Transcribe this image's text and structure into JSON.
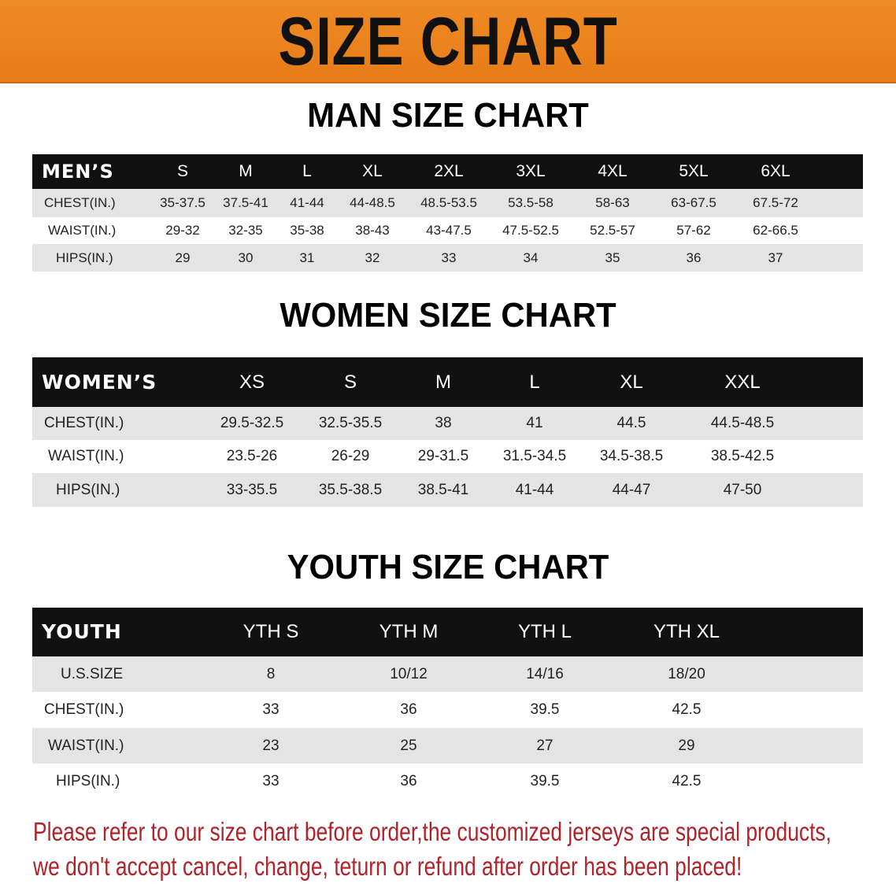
{
  "banner": {
    "title": "SIZE CHART",
    "color": "#e9801b"
  },
  "men": {
    "title": "MAN SIZE CHART",
    "header": "MEN’S",
    "sizes": [
      "S",
      "M",
      "L",
      "XL",
      "2XL",
      "3XL",
      "4XL",
      "5XL",
      "6XL"
    ],
    "rows": [
      {
        "label": "CHEST(IN.)",
        "values": [
          "35-37.5",
          "37.5-41",
          "41-44",
          "44-48.5",
          "48.5-53.5",
          "53.5-58",
          "58-63",
          "63-67.5",
          "67.5-72"
        ]
      },
      {
        "label": "WAIST(IN.)",
        "values": [
          "29-32",
          "32-35",
          "35-38",
          "38-43",
          "43-47.5",
          "47.5-52.5",
          "52.5-57",
          "57-62",
          "62-66.5"
        ]
      },
      {
        "label": "HIPS(IN.)",
        "values": [
          "29",
          "30",
          "31",
          "32",
          "33",
          "34",
          "35",
          "36",
          "37"
        ]
      }
    ]
  },
  "women": {
    "title": "WOMEN SIZE CHART",
    "header": "WOMEN’S",
    "sizes": [
      "XS",
      "S",
      "M",
      "L",
      "XL",
      "XXL"
    ],
    "rows": [
      {
        "label": "CHEST(IN.)",
        "values": [
          "29.5-32.5",
          "32.5-35.5",
          "38",
          "41",
          "44.5",
          "44.5-48.5"
        ]
      },
      {
        "label": "WAIST(IN.)",
        "values": [
          "23.5-26",
          "26-29",
          "29-31.5",
          "31.5-34.5",
          "34.5-38.5",
          "38.5-42.5"
        ]
      },
      {
        "label": "HIPS(IN.)",
        "values": [
          "33-35.5",
          "35.5-38.5",
          "38.5-41",
          "41-44",
          "44-47",
          "47-50"
        ]
      }
    ]
  },
  "youth": {
    "title": "YOUTH SIZE CHART",
    "header": "YOUTH",
    "sizes": [
      "YTH S",
      "YTH M",
      "YTH L",
      "YTH XL"
    ],
    "rows": [
      {
        "label": "U.S.SIZE",
        "values": [
          "8",
          "10/12",
          "14/16",
          "18/20"
        ]
      },
      {
        "label": "CHEST(IN.)",
        "values": [
          "33",
          "36",
          "39.5",
          "42.5"
        ]
      },
      {
        "label": "WAIST(IN.)",
        "values": [
          "23",
          "25",
          "27",
          "29"
        ]
      },
      {
        "label": "HIPS(IN.)",
        "values": [
          "33",
          "36",
          "39.5",
          "42.5"
        ]
      }
    ]
  },
  "notice": {
    "line1": "Please refer to our size chart before order,the customized jerseys are special products,",
    "line2": "we don't accept cancel, change, teturn or refund after order has been placed!",
    "color": "#b0232a"
  }
}
